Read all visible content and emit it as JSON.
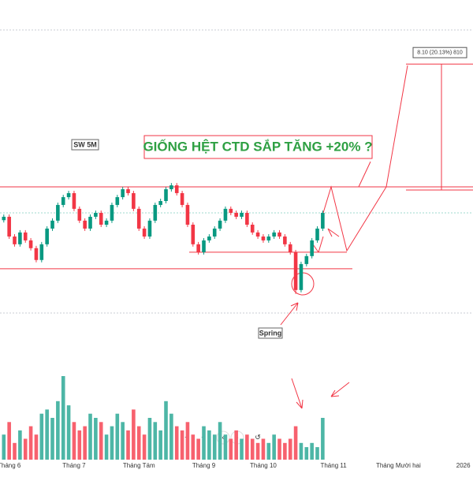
{
  "chart_data": {
    "type": "candlestick",
    "title": "GIỐNG HỆT CTD SẮP TĂNG +20% ?",
    "annotations": {
      "label": "SW 5M",
      "spring": "Spring",
      "measure": "8.10 (20.13%) 810"
    },
    "measure_range": [
      40.24,
      48.34
    ],
    "levels": [
      40.44,
      36.24,
      35.18
    ],
    "up_color": "#089981",
    "down_color": "#f23645",
    "volume_up_color": "#4db6a6",
    "volume_down_color": "#f7616e",
    "xlim": [
      -0.7,
      86.8
    ],
    "xticks": [
      {
        "value": 1,
        "label": "Tháng 6"
      },
      {
        "value": 13,
        "label": "Tháng 7"
      },
      {
        "value": 25,
        "label": "Tháng Tám"
      },
      {
        "value": 37,
        "label": "Tháng 9"
      },
      {
        "value": 48,
        "label": "Tháng 10"
      },
      {
        "value": 61,
        "label": "Tháng 11"
      },
      {
        "value": 73,
        "label": "Tháng Mười hai"
      },
      {
        "value": 85,
        "label": "2026"
      }
    ],
    "ylim": [
      30,
      52
    ],
    "volume_lim": [
      0,
      100
    ],
    "open": [
      38.3,
      38.52,
      37.25,
      36.75,
      37.51,
      37.0,
      36.5,
      35.74,
      36.75,
      37.76,
      38.27,
      39.28,
      39.78,
      40.04,
      39.03,
      38.27,
      37.76,
      38.52,
      38.77,
      38.01,
      38.27,
      39.28,
      39.78,
      40.29,
      40.04,
      39.03,
      37.76,
      37.25,
      38.27,
      39.28,
      39.53,
      40.29,
      40.54,
      40.04,
      39.28,
      38.01,
      36.75,
      36.24,
      37.0,
      37.25,
      37.76,
      38.27,
      39.03,
      38.77,
      38.52,
      38.77,
      38.01,
      37.51,
      37.25,
      37.0,
      37.25,
      37.51,
      37.25,
      36.75,
      36.24,
      33.81,
      35.48,
      35.99,
      37.0,
      37.76
    ],
    "high": [
      38.67,
      38.67,
      37.4,
      37.66,
      37.66,
      37.15,
      36.65,
      36.9,
      37.91,
      38.42,
      39.43,
      39.93,
      40.19,
      40.19,
      39.18,
      38.42,
      38.67,
      38.92,
      38.92,
      38.42,
      39.43,
      39.93,
      40.44,
      40.44,
      40.19,
      39.18,
      37.91,
      38.42,
      39.43,
      39.68,
      40.44,
      40.69,
      40.69,
      40.19,
      39.43,
      38.16,
      36.9,
      37.15,
      37.4,
      37.91,
      38.42,
      39.18,
      39.18,
      38.92,
      38.92,
      38.92,
      38.16,
      37.66,
      37.4,
      37.4,
      37.66,
      37.66,
      37.4,
      36.9,
      36.39,
      35.63,
      36.14,
      37.15,
      37.91,
      38.92
    ],
    "low": [
      38.15,
      37.1,
      36.6,
      36.6,
      36.85,
      36.35,
      35.59,
      35.59,
      36.6,
      37.61,
      38.12,
      39.13,
      39.63,
      38.88,
      38.12,
      37.61,
      37.61,
      38.37,
      37.86,
      37.86,
      38.12,
      39.13,
      39.63,
      39.89,
      38.88,
      37.61,
      37.1,
      37.1,
      38.12,
      39.13,
      39.38,
      40.14,
      39.89,
      39.13,
      37.86,
      36.6,
      36.09,
      36.09,
      36.85,
      37.1,
      37.61,
      38.12,
      38.62,
      38.37,
      38.37,
      37.86,
      37.36,
      37.1,
      36.85,
      36.85,
      37.1,
      37.1,
      36.6,
      36.09,
      33.56,
      33.66,
      35.33,
      35.84,
      36.85,
      37.61
    ],
    "close": [
      38.52,
      37.25,
      36.75,
      37.51,
      37.0,
      36.5,
      35.74,
      36.75,
      37.76,
      38.27,
      39.28,
      39.78,
      40.04,
      39.03,
      38.27,
      37.76,
      38.52,
      38.77,
      38.01,
      38.27,
      39.28,
      39.78,
      40.29,
      40.04,
      39.03,
      37.76,
      37.25,
      38.27,
      39.28,
      39.53,
      40.29,
      40.54,
      40.04,
      39.28,
      38.01,
      36.75,
      36.24,
      37.0,
      37.25,
      37.76,
      38.27,
      39.03,
      38.77,
      38.52,
      38.77,
      38.01,
      37.51,
      37.25,
      37.0,
      37.25,
      37.51,
      37.25,
      36.75,
      36.24,
      33.81,
      35.48,
      35.99,
      37.0,
      37.76,
      38.77
    ],
    "volume": [
      30,
      45,
      20,
      35,
      25,
      40,
      30,
      55,
      60,
      50,
      70,
      100,
      65,
      45,
      35,
      40,
      55,
      50,
      45,
      30,
      40,
      55,
      45,
      35,
      60,
      40,
      30,
      50,
      45,
      35,
      70,
      55,
      40,
      35,
      45,
      30,
      25,
      40,
      35,
      30,
      45,
      30,
      25,
      35,
      25,
      30,
      25,
      20,
      25,
      20,
      30,
      25,
      20,
      25,
      40,
      20,
      15,
      20,
      15,
      50
    ]
  }
}
